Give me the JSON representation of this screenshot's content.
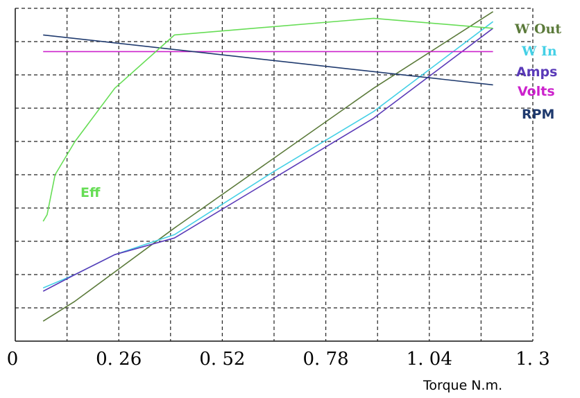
{
  "chart_data": {
    "type": "line",
    "title": "",
    "xlabel": "Torque N.m.",
    "ylabel": "",
    "xlim": [
      0,
      1.3
    ],
    "x_ticks": [
      "0",
      "0. 26",
      "0. 52",
      "0. 78",
      "1. 04",
      "1. 3"
    ],
    "grid": true,
    "series": [
      {
        "name": "W Out",
        "color": "#5b7a3a",
        "points": [
          [
            0.07,
            0.06
          ],
          [
            0.15,
            0.12
          ],
          [
            0.4,
            0.34
          ],
          [
            0.65,
            0.55
          ],
          [
            0.9,
            0.76
          ],
          [
            1.2,
            0.99
          ]
        ]
      },
      {
        "name": "W In",
        "color": "#44d0e6",
        "points": [
          [
            0.07,
            0.16
          ],
          [
            0.15,
            0.2
          ],
          [
            0.25,
            0.26
          ],
          [
            0.4,
            0.32
          ],
          [
            0.65,
            0.51
          ],
          [
            0.9,
            0.69
          ],
          [
            1.2,
            0.96
          ]
        ]
      },
      {
        "name": "Amps",
        "color": "#5a3ab8",
        "points": [
          [
            0.07,
            0.15
          ],
          [
            0.15,
            0.2
          ],
          [
            0.25,
            0.26
          ],
          [
            0.4,
            0.31
          ],
          [
            0.65,
            0.49
          ],
          [
            0.9,
            0.67
          ],
          [
            1.2,
            0.94
          ]
        ]
      },
      {
        "name": "Volts",
        "color": "#cc22cc",
        "points": [
          [
            0.07,
            0.87
          ],
          [
            1.2,
            0.87
          ]
        ]
      },
      {
        "name": "RPM",
        "color": "#1f3a6e",
        "points": [
          [
            0.07,
            0.92
          ],
          [
            1.2,
            0.77
          ]
        ]
      },
      {
        "name": "Eff",
        "color": "#66dd55",
        "points": [
          [
            0.07,
            0.36
          ],
          [
            0.08,
            0.38
          ],
          [
            0.1,
            0.5
          ],
          [
            0.15,
            0.6
          ],
          [
            0.25,
            0.76
          ],
          [
            0.4,
            0.92
          ],
          [
            0.9,
            0.97
          ],
          [
            1.2,
            0.94
          ]
        ]
      }
    ]
  }
}
